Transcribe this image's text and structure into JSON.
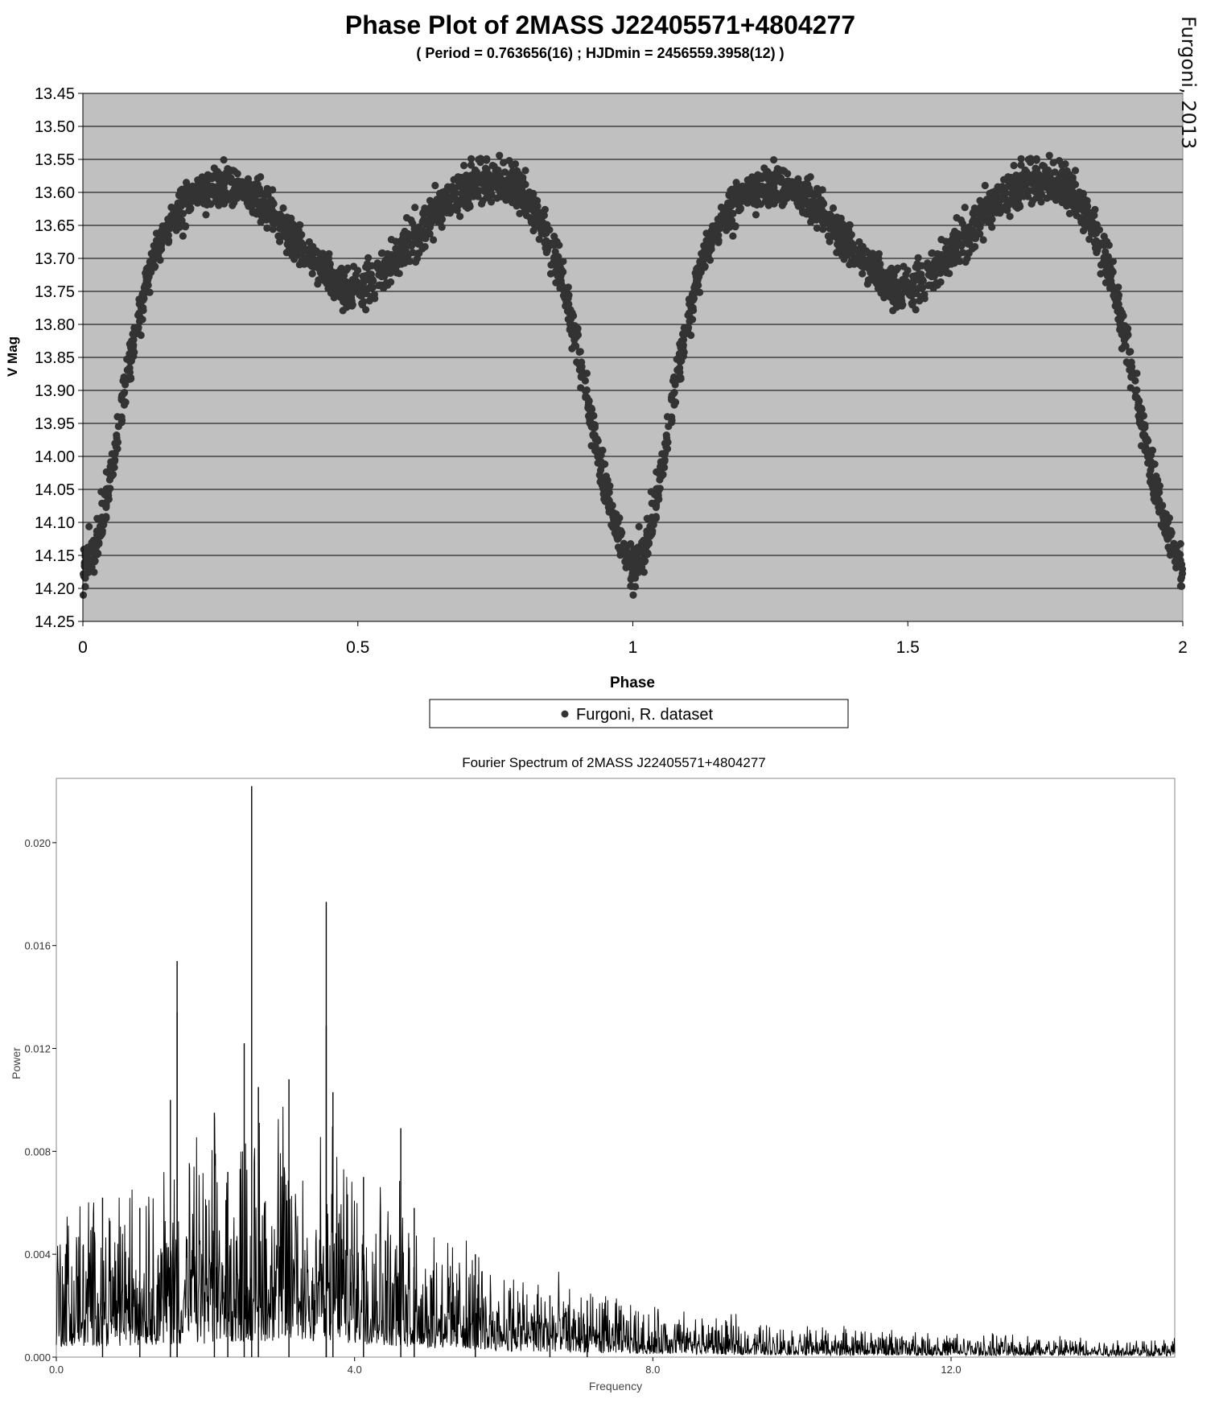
{
  "credit": "Furgoni, 2013",
  "chart_data": [
    {
      "type": "scatter",
      "title": "Phase Plot of 2MASS J22405571+4804277",
      "subtitle": "( Period = 0.763656(16) ; HJDmin = 2456559.3958(12) )",
      "xlabel": "Phase",
      "ylabel": "V Mag",
      "xlim": [
        0,
        2
      ],
      "ylim": [
        13.45,
        14.25
      ],
      "y_inverted": true,
      "x_ticks": [
        "0",
        "0.5",
        "1",
        "1.5",
        "2"
      ],
      "y_ticks": [
        "13.45",
        "13.50",
        "13.55",
        "13.60",
        "13.65",
        "13.70",
        "13.75",
        "13.80",
        "13.85",
        "13.90",
        "13.95",
        "14.00",
        "14.05",
        "14.10",
        "14.15",
        "14.20",
        "14.25"
      ],
      "plot_background": "#c0c0c0",
      "marker_color": "#333333",
      "grid": "horizontal",
      "legend": {
        "placement": "bottom",
        "label": "Furgoni, R. dataset"
      },
      "series": [
        {
          "name": "Furgoni, R. dataset",
          "light_curve_profile": [
            [
              0.0,
              14.17
            ],
            [
              0.02,
              14.15
            ],
            [
              0.04,
              14.08
            ],
            [
              0.06,
              13.98
            ],
            [
              0.08,
              13.88
            ],
            [
              0.1,
              13.79
            ],
            [
              0.12,
              13.72
            ],
            [
              0.15,
              13.66
            ],
            [
              0.18,
              13.62
            ],
            [
              0.22,
              13.595
            ],
            [
              0.27,
              13.585
            ],
            [
              0.32,
              13.61
            ],
            [
              0.37,
              13.655
            ],
            [
              0.42,
              13.7
            ],
            [
              0.47,
              13.745
            ],
            [
              0.5,
              13.75
            ],
            [
              0.53,
              13.73
            ],
            [
              0.57,
              13.7
            ],
            [
              0.62,
              13.65
            ],
            [
              0.67,
              13.61
            ],
            [
              0.72,
              13.585
            ],
            [
              0.76,
              13.58
            ],
            [
              0.8,
              13.6
            ],
            [
              0.83,
              13.64
            ],
            [
              0.86,
              13.7
            ],
            [
              0.89,
              13.8
            ],
            [
              0.92,
              13.92
            ],
            [
              0.95,
              14.05
            ],
            [
              0.98,
              14.14
            ],
            [
              1.0,
              14.17
            ],
            [
              1.02,
              14.15
            ],
            [
              1.04,
              14.08
            ],
            [
              1.06,
              13.98
            ],
            [
              1.08,
              13.88
            ],
            [
              1.1,
              13.79
            ],
            [
              1.12,
              13.72
            ],
            [
              1.15,
              13.66
            ],
            [
              1.18,
              13.62
            ],
            [
              1.22,
              13.595
            ],
            [
              1.27,
              13.585
            ],
            [
              1.32,
              13.61
            ],
            [
              1.37,
              13.655
            ],
            [
              1.42,
              13.7
            ],
            [
              1.47,
              13.745
            ],
            [
              1.5,
              13.75
            ],
            [
              1.53,
              13.73
            ],
            [
              1.57,
              13.7
            ],
            [
              1.62,
              13.65
            ],
            [
              1.67,
              13.61
            ],
            [
              1.72,
              13.585
            ],
            [
              1.76,
              13.58
            ],
            [
              1.8,
              13.6
            ],
            [
              1.83,
              13.64
            ],
            [
              1.86,
              13.7
            ],
            [
              1.89,
              13.8
            ],
            [
              1.92,
              13.92
            ],
            [
              1.95,
              14.05
            ],
            [
              1.98,
              14.14
            ],
            [
              2.0,
              14.17
            ]
          ],
          "scatter_mag": 0.015
        }
      ]
    },
    {
      "type": "line",
      "title": "Fourier Spectrum of 2MASS J22405571+4804277",
      "xlabel": "Frequency",
      "ylabel": "Power",
      "xlim": [
        0,
        15
      ],
      "ylim": [
        0,
        0.0225
      ],
      "x_ticks": [
        "0.0",
        "4.0",
        "8.0",
        "12.0"
      ],
      "y_ticks": [
        "0.000",
        "0.004",
        "0.008",
        "0.012",
        "0.016",
        "0.020"
      ],
      "grid": "none",
      "line_color": "#000000",
      "noise_envelope": [
        [
          0.0,
          0.0025
        ],
        [
          2.0,
          0.0035
        ],
        [
          3.0,
          0.0042
        ],
        [
          4.0,
          0.0035
        ],
        [
          5.0,
          0.0022
        ],
        [
          6.0,
          0.0015
        ],
        [
          8.0,
          0.0008
        ],
        [
          10.0,
          0.0005
        ],
        [
          12.0,
          0.0004
        ],
        [
          15.0,
          0.0003
        ]
      ],
      "peaks": [
        {
          "x": 2.62,
          "y": 0.0222
        },
        {
          "x": 3.62,
          "y": 0.0177
        },
        {
          "x": 1.62,
          "y": 0.0154
        },
        {
          "x": 3.71,
          "y": 0.0103
        },
        {
          "x": 2.52,
          "y": 0.0122
        },
        {
          "x": 1.53,
          "y": 0.01
        },
        {
          "x": 3.12,
          "y": 0.0108
        },
        {
          "x": 2.71,
          "y": 0.0105
        },
        {
          "x": 2.12,
          "y": 0.0095
        },
        {
          "x": 4.62,
          "y": 0.0089
        },
        {
          "x": 1.62,
          "y": 0.0134
        },
        {
          "x": 3.62,
          "y": 0.0129
        },
        {
          "x": 5.62,
          "y": 0.004
        },
        {
          "x": 0.62,
          "y": 0.0062
        },
        {
          "x": 1.12,
          "y": 0.0058
        },
        {
          "x": 2.3,
          "y": 0.0072
        },
        {
          "x": 4.12,
          "y": 0.007
        },
        {
          "x": 4.8,
          "y": 0.0058
        },
        {
          "x": 6.62,
          "y": 0.0024
        },
        {
          "x": 7.12,
          "y": 0.0022
        }
      ]
    }
  ]
}
